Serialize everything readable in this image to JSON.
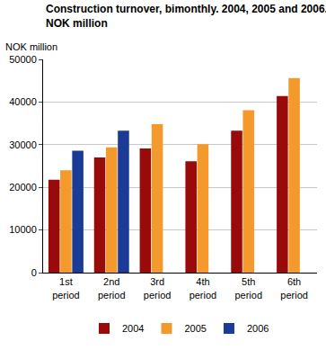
{
  "chart_data": {
    "type": "bar",
    "title": "Construction turnover, bimonthly. 2004, 2005 and 2006. NOK million",
    "y_label": "NOK million",
    "categories": [
      "1st period",
      "2nd period",
      "3rd period",
      "4th period",
      "5th period",
      "6th period"
    ],
    "series": [
      {
        "name": "2004",
        "color": "#990b0b",
        "values": [
          21800,
          27000,
          29100,
          26100,
          33300,
          41400
        ]
      },
      {
        "name": "2005",
        "color": "#f4992c",
        "values": [
          24000,
          29400,
          34800,
          30100,
          38100,
          45600
        ]
      },
      {
        "name": "2006",
        "color": "#1b3c96",
        "values": [
          28600,
          33300,
          null,
          null,
          null,
          null
        ]
      }
    ],
    "ylim": [
      0,
      50000
    ],
    "yticks": [
      0,
      10000,
      20000,
      30000,
      40000,
      50000
    ],
    "grid": true,
    "legend": "bottom"
  }
}
